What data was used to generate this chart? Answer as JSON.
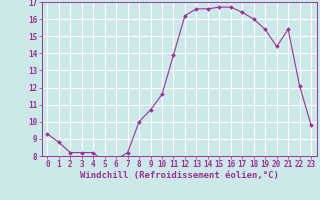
{
  "x": [
    0,
    1,
    2,
    3,
    4,
    5,
    6,
    7,
    8,
    9,
    10,
    11,
    12,
    13,
    14,
    15,
    16,
    17,
    18,
    19,
    20,
    21,
    22,
    23
  ],
  "y": [
    9.3,
    8.8,
    8.2,
    8.2,
    8.2,
    7.6,
    7.8,
    8.2,
    10.0,
    10.7,
    11.6,
    13.9,
    16.2,
    16.6,
    16.6,
    16.7,
    16.7,
    16.4,
    16.0,
    15.4,
    14.4,
    15.4,
    12.1,
    9.8
  ],
  "line_color": "#993399",
  "marker": "D",
  "marker_size": 2.0,
  "bg_color": "#cce8e8",
  "grid_color": "#ffffff",
  "xlabel": "Windchill (Refroidissement éolien,°C)",
  "ylim": [
    8,
    17
  ],
  "xlim": [
    -0.5,
    23.5
  ],
  "yticks": [
    8,
    9,
    10,
    11,
    12,
    13,
    14,
    15,
    16,
    17
  ],
  "xticks": [
    0,
    1,
    2,
    3,
    4,
    5,
    6,
    7,
    8,
    9,
    10,
    11,
    12,
    13,
    14,
    15,
    16,
    17,
    18,
    19,
    20,
    21,
    22,
    23
  ],
  "tick_fontsize": 5.5,
  "xlabel_fontsize": 6.5
}
